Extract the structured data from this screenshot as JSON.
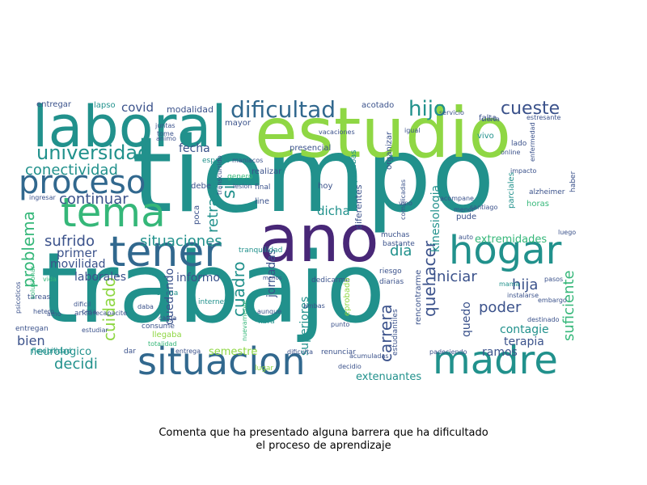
{
  "caption": {
    "line1": "Comenta que ha presentado alguna barrera que ha dificultado",
    "line2": "el proceso de aprendizaje"
  },
  "palette": {
    "purple": "#482777",
    "indigo": "#3b528b",
    "blue": "#31688e",
    "teal": "#21918c",
    "green": "#35b779",
    "lime": "#8fd744",
    "yellow": "#c8e020"
  },
  "words": {
    "tiempo": "tiempo",
    "trabajo": "trabajo",
    "estudio": "estudio",
    "laboral": "laboral",
    "ano": "ano",
    "situacion": "situacion",
    "madre": "madre",
    "hogar": "hogar",
    "tener": "tener",
    "tema": "tema",
    "proceso": "proceso",
    "universidad": "universidad",
    "dificultad": "dificultad",
    "hijo": "hijo",
    "cueste": "cueste",
    "covid": "covid",
    "conectividad": "conectividad",
    "continuar": "continuar",
    "fecha": "fecha",
    "retraso": "retraso",
    "si": "si",
    "problema": "problema",
    "sufrido": "sufrido",
    "situaciones": "situaciones",
    "cuidado": "cuidado",
    "cuadro": "cuadro",
    "jornadas": "jornadas",
    "dicha": "dicha",
    "dia": "dia",
    "quehacer": "quehacer",
    "iniciar": "iniciar",
    "hija": "hija",
    "poder": "poder",
    "suficiente": "suficiente",
    "carrera": "carrera",
    "kinesiologia": "kinesiologia",
    "extremidades": "extremidades",
    "primer": "primer",
    "movilidad": "movilidad",
    "laborales": "laborales",
    "informo": "informo",
    "bien": "bien",
    "decidi": "decidi",
    "neurologico": "neurologico",
    "semestre": "semestre",
    "superiores": "superiores",
    "quedando": "quedando",
    "terapia": "terapia",
    "contagie": "contagie",
    "ramos": "ramos",
    "extenuantes": "extenuantes",
    "quedo": "quedo",
    "modalidad": "modalidad",
    "lapso": "lapso",
    "entregar": "entregar",
    "acotado": "acotado",
    "presencial": "presencial",
    "realizar": "realizar",
    "poca": "poca",
    "debe": "debe",
    "mayor": "mayor",
    "hoy": "hoy",
    "line": "line",
    "final": "final",
    "pruebas": "pruebas",
    "diferentes": "diferentes",
    "organizar": "organizar",
    "servicio": "servicio",
    "falta": "falta",
    "vivo": "vivo",
    "cierta": "cierta",
    "online": "online",
    "lado": "lado",
    "impacto": "impacto",
    "parciales": "parciales",
    "horas": "horas",
    "alzheimer": "alzheimer",
    "haber": "haber",
    "luego": "luego",
    "santiago": "santiago",
    "pude": "pude",
    "auto": "auto",
    "muchas": "muchas",
    "bastante": "bastante",
    "riesgo": "riesgo",
    "diarias": "diarias",
    "dedicarme": "dedicarme",
    "eprobado": "eprobado",
    "internet": "internet",
    "fibra": "fibra",
    "aunque": "aunque",
    "ambas": "ambas",
    "punto": "punto",
    "renunciar": "renunciar",
    "lugar": "lugar",
    "dar": "dar",
    "llegaba": "llegaba",
    "consume": "consume",
    "flexibilidad": "flexibilidad",
    "tareas": "tareas",
    "entregan": "entregan",
    "dificil": "dificil",
    "arica": "arica",
    "recapacite": "recapacite",
    "estudiar": "estudiar",
    "vida": "vida",
    "amo": "amo",
    "psicoticos": "psicoticos",
    "ingresar": "ingresar",
    "espacio": "espacio",
    "genero": "genero",
    "tranquilidad": "tranquilidad",
    "transcurrido": "transcurrido",
    "juntas": "juntas",
    "tome": "tome",
    "animo": "animo",
    "lesion": "lesion",
    "vacaciones": "vacaciones",
    "igual": "igual",
    "mama": "mama",
    "instalarse": "instalarse",
    "embargo": "embargo",
    "pasos": "pasos",
    "destinado": "destinado",
    "rencontrarme": "rencontrarme",
    "estudiantiles": "estudiantiles",
    "padeciendo": "padeciendo",
    "decidio": "decidio",
    "acumuladas": "acumuladas",
    "dificulta": "dificulta",
    "entrega": "entrega",
    "totalidad": "totalidad",
    "nuevamente": "nuevamente",
    "hetero": "hetero",
    "casa": "casa",
    "menor": "menor",
    "acompane": "acompane",
    "carga": "carga",
    "calma": "calma",
    "daba": "daba",
    "maniacos": "maniacos",
    "menos": "menos",
    "estresante": "estresante",
    "enfermedad": "enfermedad",
    "complicadas": "complicadas",
    "vino": "vino",
    "solucionar": "solucionar"
  }
}
